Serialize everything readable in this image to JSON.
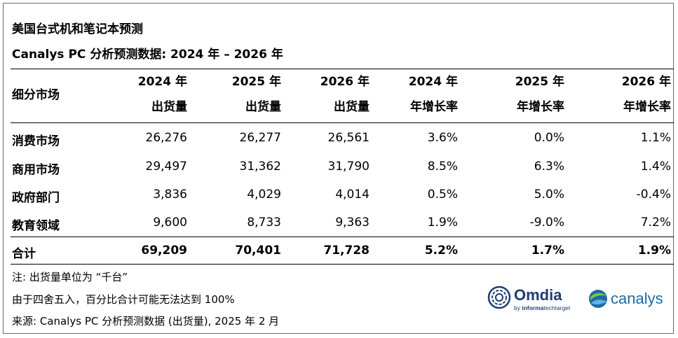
{
  "title": "美国台式机和笔记本预测",
  "subtitle": "Canalys PC 分析预测数据: 2024 年 – 2026 年",
  "columns": {
    "segment": "细分市场",
    "c1": [
      "2024 年",
      "出货量"
    ],
    "c2": [
      "2025 年",
      "出货量"
    ],
    "c3": [
      "2026 年",
      "出货量"
    ],
    "c4": [
      "2024 年",
      "年增长率"
    ],
    "c5": [
      "2025 年",
      "年增长率"
    ],
    "c6": [
      "2026 年",
      "年增长率"
    ]
  },
  "rows": [
    {
      "label": "消费市场",
      "values": [
        "26,276",
        "26,277",
        "26,561",
        "3.6%",
        "0.0%",
        "1.1%"
      ]
    },
    {
      "label": "商用市场",
      "values": [
        "29,497",
        "31,362",
        "31,790",
        "8.5%",
        "6.3%",
        "1.4%"
      ]
    },
    {
      "label": "政府部门",
      "values": [
        "3,836",
        "4,029",
        "4,014",
        "0.5%",
        "5.0%",
        "-0.4%"
      ]
    },
    {
      "label": "教育领域",
      "values": [
        "9,600",
        "8,733",
        "9,363",
        "1.9%",
        "-9.0%",
        "7.2%"
      ]
    }
  ],
  "total": {
    "label": "合计",
    "values": [
      "69,209",
      "70,401",
      "71,728",
      "5.2%",
      "1.7%",
      "1.9%"
    ]
  },
  "notes": [
    "注: 出货量单位为 “千台”",
    "由于四舍五入，百分比合计可能无法达到 100%",
    "来源: Canalys PC 分析预测数据 (出货量), 2025 年 2 月"
  ],
  "logos": {
    "omdia_name": "Omdia",
    "omdia_tagline_pre": "by ",
    "omdia_tagline_brand": "informa",
    "omdia_tagline_post": "techtarget",
    "canalys_name": "canalys"
  },
  "colors": {
    "rule": "#000000",
    "border": "#6b6b6b",
    "omdia_blue": "#1d3e6e",
    "canalys_blue": "#1b6aa5",
    "canalys_green": "#7cc242"
  }
}
